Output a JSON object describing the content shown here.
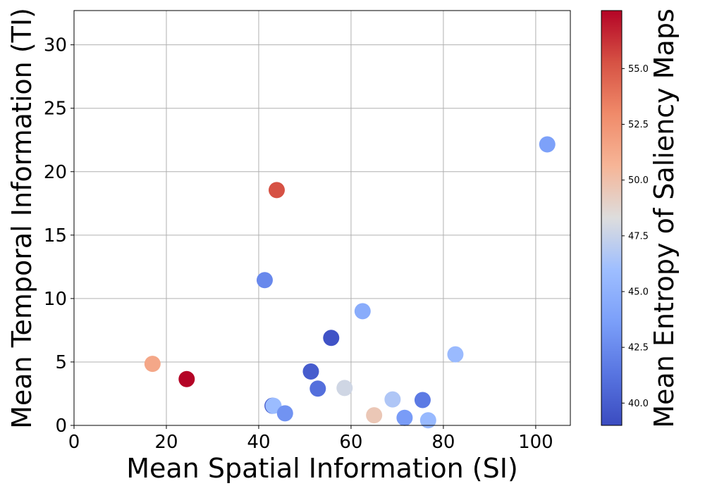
{
  "chart_data": {
    "type": "scatter",
    "title": "",
    "xlabel": "Mean Spatial Information (SI)",
    "ylabel": "Mean Temporal Information (TI)",
    "colorbar_label": "Mean Entropy of Saliency Maps",
    "colormap": "coolwarm",
    "xlim": [
      0,
      107.5
    ],
    "ylim": [
      0,
      32.7
    ],
    "clim": [
      39.0,
      57.6
    ],
    "grid": true,
    "x_ticks": [
      "0",
      "20",
      "40",
      "60",
      "80",
      "100"
    ],
    "y_ticks": [
      "0",
      "5",
      "10",
      "15",
      "20",
      "25",
      "30"
    ],
    "colorbar_ticks": [
      "40.0",
      "42.5",
      "45.0",
      "47.5",
      "50.0",
      "52.5",
      "55.0"
    ],
    "points": [
      {
        "x": 17.0,
        "y": 4.85,
        "c": 51.4
      },
      {
        "x": 24.4,
        "y": 3.65,
        "c": 57.6
      },
      {
        "x": 41.3,
        "y": 11.45,
        "c": 42.4
      },
      {
        "x": 43.0,
        "y": 1.55,
        "c": 39.6
      },
      {
        "x": 43.2,
        "y": 1.55,
        "c": 45.8
      },
      {
        "x": 43.9,
        "y": 18.55,
        "c": 55.3
      },
      {
        "x": 45.7,
        "y": 0.95,
        "c": 43.0
      },
      {
        "x": 51.3,
        "y": 4.25,
        "c": 39.9
      },
      {
        "x": 52.8,
        "y": 2.9,
        "c": 41.0
      },
      {
        "x": 55.7,
        "y": 6.9,
        "c": 39.4
      },
      {
        "x": 58.6,
        "y": 2.95,
        "c": 47.8
      },
      {
        "x": 62.5,
        "y": 9.0,
        "c": 44.6
      },
      {
        "x": 65.0,
        "y": 0.8,
        "c": 49.6
      },
      {
        "x": 69.0,
        "y": 2.05,
        "c": 46.6
      },
      {
        "x": 71.6,
        "y": 0.6,
        "c": 43.5
      },
      {
        "x": 75.5,
        "y": 2.0,
        "c": 41.6
      },
      {
        "x": 76.7,
        "y": 0.4,
        "c": 45.6
      },
      {
        "x": 82.6,
        "y": 5.6,
        "c": 45.7
      },
      {
        "x": 102.5,
        "y": 22.15,
        "c": 43.8
      }
    ]
  }
}
